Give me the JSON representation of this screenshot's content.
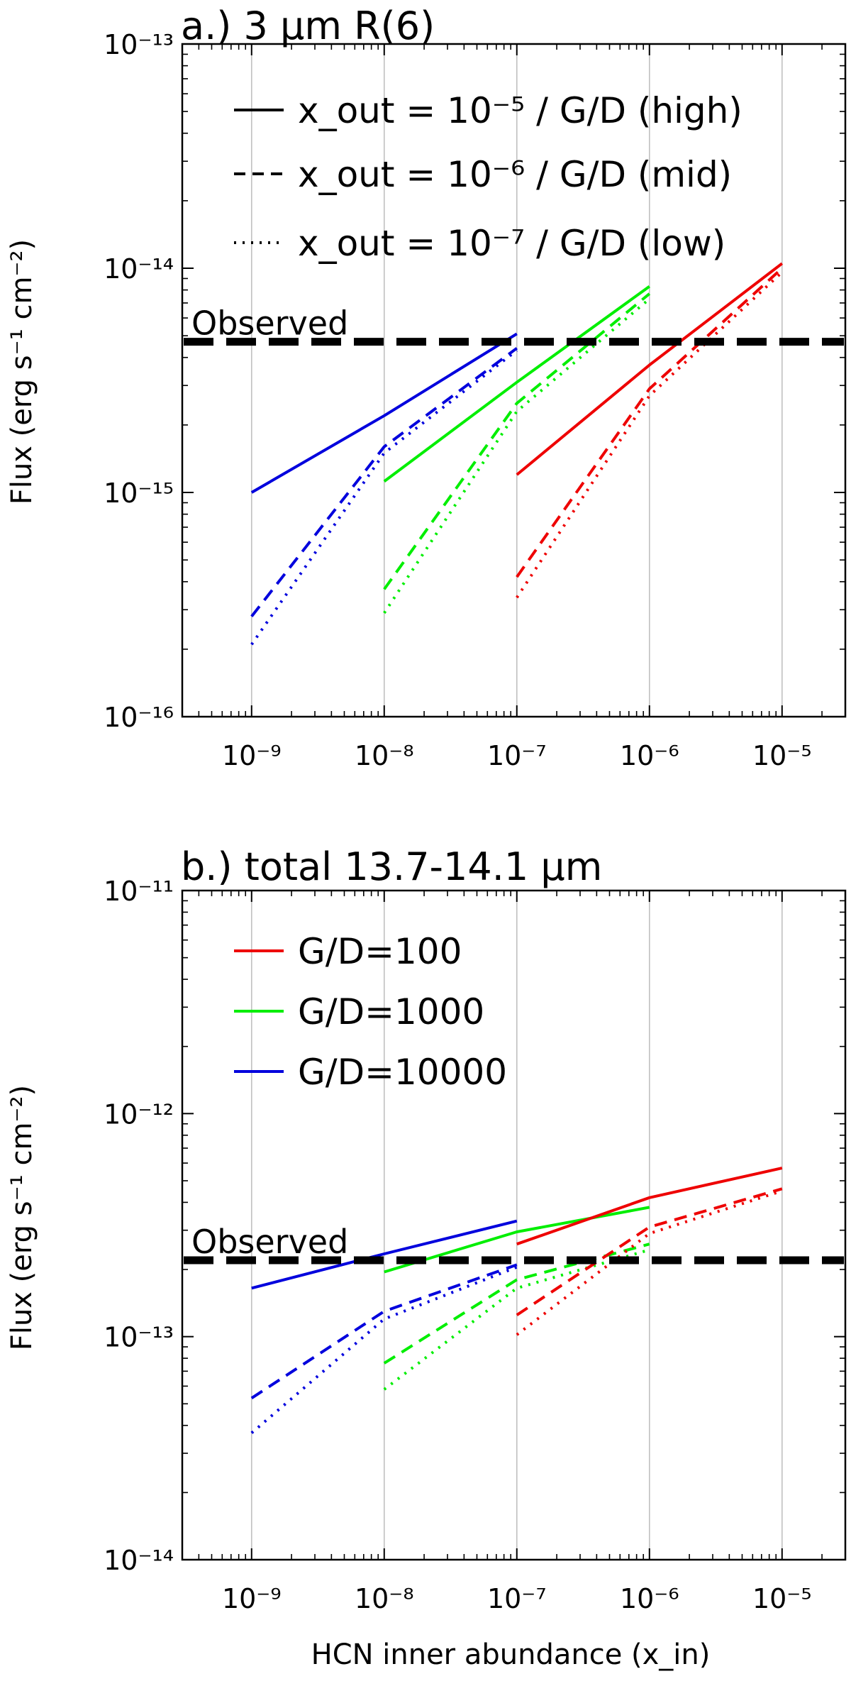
{
  "chart_data": [
    {
      "id": "a",
      "type": "line",
      "title": "a.) 3 μm R(6)",
      "ylabel": "Flux (erg s⁻¹ cm⁻²)",
      "xlabel": "",
      "x_scale": "log",
      "y_scale": "log",
      "xlim": [
        3e-10,
        3e-05
      ],
      "ylim": [
        1e-16,
        1e-13
      ],
      "x_tick_labels": [
        "10⁻⁹",
        "10⁻⁸",
        "10⁻⁷",
        "10⁻⁶",
        "10⁻⁵"
      ],
      "y_tick_labels": [
        "10⁻¹⁶",
        "10⁻¹⁵",
        "10⁻¹⁴",
        "10⁻¹³"
      ],
      "grid": "vertical lines at major x ticks",
      "observed": {
        "label": "Observed",
        "value": 4.7e-15
      },
      "legend_position": "top-left",
      "legend": [
        {
          "style": "solid",
          "label": "x_out = 10⁻⁵ / G/D (high)"
        },
        {
          "style": "dashed",
          "label": "x_out = 10⁻⁶ / G/D (mid)"
        },
        {
          "style": "dotted",
          "label": "x_out = 10⁻⁷ / G/D (low)"
        }
      ],
      "series": [
        {
          "gd": "10000",
          "outer": "high",
          "color": "#0000dd",
          "style": "solid",
          "x": [
            1e-09,
            1e-08,
            1e-07
          ],
          "y": [
            1e-15,
            2.2e-15,
            5.1e-15
          ]
        },
        {
          "gd": "10000",
          "outer": "mid",
          "color": "#0000dd",
          "style": "dashed",
          "x": [
            1e-09,
            1e-08,
            1e-07
          ],
          "y": [
            2.8e-16,
            1.6e-15,
            4.4e-15
          ]
        },
        {
          "gd": "10000",
          "outer": "low",
          "color": "#0000dd",
          "style": "dotted",
          "x": [
            1e-09,
            1e-08,
            1e-07
          ],
          "y": [
            2.1e-16,
            1.5e-15,
            4.3e-15
          ]
        },
        {
          "gd": "1000",
          "outer": "high",
          "color": "#00ee00",
          "style": "solid",
          "x": [
            1e-08,
            1e-07,
            1e-06
          ],
          "y": [
            1.12e-15,
            3.1e-15,
            8.3e-15
          ]
        },
        {
          "gd": "1000",
          "outer": "mid",
          "color": "#00ee00",
          "style": "dashed",
          "x": [
            1e-08,
            1e-07,
            1e-06
          ],
          "y": [
            3.7e-16,
            2.5e-15,
            7.7e-15
          ]
        },
        {
          "gd": "1000",
          "outer": "low",
          "color": "#00ee00",
          "style": "dotted",
          "x": [
            1e-08,
            1e-07,
            1e-06
          ],
          "y": [
            2.9e-16,
            2.3e-15,
            7.3e-15
          ]
        },
        {
          "gd": "100",
          "outer": "high",
          "color": "#ee0000",
          "style": "solid",
          "x": [
            1e-07,
            1e-06,
            1e-05
          ],
          "y": [
            1.2e-15,
            3.7e-15,
            1.05e-14
          ]
        },
        {
          "gd": "100",
          "outer": "mid",
          "color": "#ee0000",
          "style": "dashed",
          "x": [
            1e-07,
            1e-06,
            1e-05
          ],
          "y": [
            4.2e-16,
            2.9e-15,
            1e-14
          ]
        },
        {
          "gd": "100",
          "outer": "low",
          "color": "#ee0000",
          "style": "dotted",
          "x": [
            1e-07,
            1e-06,
            1e-05
          ],
          "y": [
            3.4e-16,
            2.7e-15,
            9.6e-15
          ]
        }
      ]
    },
    {
      "id": "b",
      "type": "line",
      "title": "b.) total 13.7-14.1 μm",
      "ylabel": "Flux (erg s⁻¹ cm⁻²)",
      "xlabel": "HCN inner abundance (x_in)",
      "x_scale": "log",
      "y_scale": "log",
      "xlim": [
        3e-10,
        3e-05
      ],
      "ylim": [
        1e-14,
        1e-11
      ],
      "x_tick_labels": [
        "10⁻⁹",
        "10⁻⁸",
        "10⁻⁷",
        "10⁻⁶",
        "10⁻⁵"
      ],
      "y_tick_labels": [
        "10⁻¹⁴",
        "10⁻¹³",
        "10⁻¹²",
        "10⁻¹¹"
      ],
      "grid": "vertical lines at major x ticks",
      "observed": {
        "label": "Observed",
        "value": 2.2e-13
      },
      "legend_position": "top-left",
      "legend": [
        {
          "color": "#ee0000",
          "label": "G/D=100"
        },
        {
          "color": "#00ee00",
          "label": "G/D=1000"
        },
        {
          "color": "#0000dd",
          "label": "G/D=10000"
        }
      ],
      "series": [
        {
          "gd": "10000",
          "outer": "high",
          "color": "#0000dd",
          "style": "solid",
          "x": [
            1e-09,
            1e-08,
            1e-07
          ],
          "y": [
            1.65e-13,
            2.35e-13,
            3.3e-13
          ]
        },
        {
          "gd": "10000",
          "outer": "mid",
          "color": "#0000dd",
          "style": "dashed",
          "x": [
            1e-09,
            1e-08,
            1e-07
          ],
          "y": [
            5.3e-14,
            1.3e-13,
            2.1e-13
          ]
        },
        {
          "gd": "10000",
          "outer": "low",
          "color": "#0000dd",
          "style": "dotted",
          "x": [
            1e-09,
            1e-08,
            1e-07
          ],
          "y": [
            3.7e-14,
            1.2e-13,
            2.05e-13
          ]
        },
        {
          "gd": "1000",
          "outer": "high",
          "color": "#00ee00",
          "style": "solid",
          "x": [
            1e-08,
            1e-07,
            1e-06
          ],
          "y": [
            1.95e-13,
            2.95e-13,
            3.8e-13
          ]
        },
        {
          "gd": "1000",
          "outer": "mid",
          "color": "#00ee00",
          "style": "dashed",
          "x": [
            1e-08,
            1e-07,
            1e-06
          ],
          "y": [
            7.6e-14,
            1.8e-13,
            2.6e-13
          ]
        },
        {
          "gd": "1000",
          "outer": "low",
          "color": "#00ee00",
          "style": "dotted",
          "x": [
            1e-08,
            1e-07,
            1e-06
          ],
          "y": [
            5.8e-14,
            1.65e-13,
            2.45e-13
          ]
        },
        {
          "gd": "100",
          "outer": "high",
          "color": "#ee0000",
          "style": "solid",
          "x": [
            1e-07,
            1e-06,
            1e-05
          ],
          "y": [
            2.6e-13,
            4.2e-13,
            5.7e-13
          ]
        },
        {
          "gd": "100",
          "outer": "mid",
          "color": "#ee0000",
          "style": "dashed",
          "x": [
            1e-07,
            1e-06,
            1e-05
          ],
          "y": [
            1.25e-13,
            3.1e-13,
            4.6e-13
          ]
        },
        {
          "gd": "100",
          "outer": "low",
          "color": "#ee0000",
          "style": "dotted",
          "x": [
            1e-07,
            1e-06,
            1e-05
          ],
          "y": [
            1.02e-13,
            2.9e-13,
            4.5e-13
          ]
        }
      ]
    }
  ]
}
